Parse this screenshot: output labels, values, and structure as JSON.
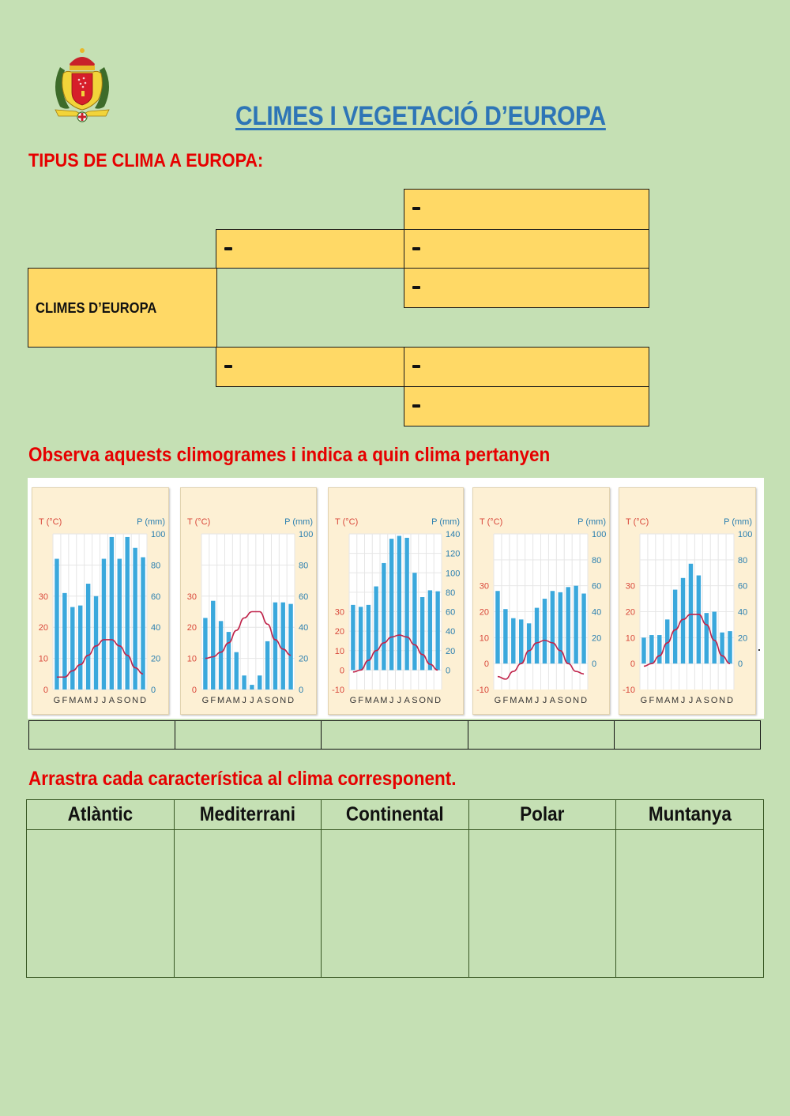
{
  "header": {
    "title": "CLIMES I VEGETACIÓ D’EUROPA",
    "logo": "coat-of-arms-icon"
  },
  "section1": {
    "heading": "TIPUS DE CLIMA A EUROPA:",
    "root_label": "CLIMES D’EUROPA",
    "dash": "-",
    "level1_count": 2,
    "level2_count": 5
  },
  "section2": {
    "heading": "Observa aquests climogrames i indica a quin clima pertanyen",
    "answer_boxes": [
      "",
      "",
      "",
      "",
      ""
    ]
  },
  "section3": {
    "heading": "Arrastra cada característica al clima corresponent.",
    "columns": [
      "Atlàntic",
      "Mediterrani",
      "Continental",
      "Polar",
      "Muntanya"
    ]
  },
  "colors": {
    "background": "#c5e0b4",
    "title_blue": "#2e75b6",
    "heading_red": "#e60000",
    "box_yellow": "#ffd966",
    "chart_bg": "#fdf0d4",
    "bar_blue": "#3aa8dc",
    "temp_line": "#c0234a",
    "t_axis_red": "#d9473a",
    "p_axis_blue": "#2a7fb0"
  },
  "chart_data": [
    {
      "type": "bar",
      "title": "Climograma 1",
      "categories": [
        "G",
        "F",
        "M",
        "A",
        "M",
        "J",
        "J",
        "A",
        "S",
        "O",
        "N",
        "D"
      ],
      "xlabel": "",
      "ylabel_left": "T (°C)",
      "ylabel_right": "P (mm)",
      "left_ticks": [
        0,
        10,
        20,
        30
      ],
      "right_ticks": [
        0,
        20,
        40,
        60,
        80,
        100
      ],
      "ylim_left": [
        0,
        50
      ],
      "ylim_right": [
        0,
        100
      ],
      "series": [
        {
          "name": "P (mm)",
          "type": "bar",
          "axis": "right",
          "values": [
            84,
            62,
            53,
            54,
            68,
            60,
            84,
            98,
            84,
            98,
            91,
            85
          ]
        },
        {
          "name": "T (°C)",
          "type": "line",
          "axis": "left",
          "values": [
            4,
            4,
            6,
            8,
            11,
            14,
            16,
            16,
            14,
            11,
            7,
            5
          ]
        }
      ],
      "grid": true
    },
    {
      "type": "bar",
      "title": "Climograma 2",
      "categories": [
        "G",
        "F",
        "M",
        "A",
        "M",
        "J",
        "J",
        "A",
        "S",
        "O",
        "N",
        "D"
      ],
      "xlabel": "",
      "ylabel_left": "T (°C)",
      "ylabel_right": "P (mm)",
      "left_ticks": [
        0,
        10,
        20,
        30
      ],
      "right_ticks": [
        0,
        20,
        40,
        60,
        80,
        100
      ],
      "ylim_left": [
        0,
        50
      ],
      "ylim_right": [
        0,
        100
      ],
      "series": [
        {
          "name": "P (mm)",
          "type": "bar",
          "axis": "right",
          "values": [
            46,
            57,
            44,
            37,
            24,
            9,
            3,
            9,
            31,
            56,
            56,
            55
          ]
        },
        {
          "name": "T (°C)",
          "type": "line",
          "axis": "left",
          "values": [
            10,
            10.5,
            12,
            15,
            19,
            23,
            25,
            25,
            21,
            16,
            13,
            11
          ]
        }
      ],
      "grid": true
    },
    {
      "type": "bar",
      "title": "Climograma 3",
      "categories": [
        "G",
        "F",
        "M",
        "A",
        "M",
        "J",
        "J",
        "A",
        "S",
        "O",
        "N",
        "D"
      ],
      "xlabel": "",
      "ylabel_left": "T (°C)",
      "ylabel_right": "P (mm)",
      "left_ticks": [
        -10,
        0,
        10,
        20,
        30
      ],
      "right_ticks": [
        0,
        20,
        40,
        60,
        80,
        100,
        120,
        140
      ],
      "ylim_left": [
        -10,
        70
      ],
      "ylim_right": [
        -20,
        140
      ],
      "series": [
        {
          "name": "P (mm)",
          "type": "bar",
          "axis": "right",
          "values": [
            67,
            65,
            67,
            86,
            110,
            135,
            138,
            136,
            100,
            75,
            82,
            81
          ]
        },
        {
          "name": "T (°C)",
          "type": "line",
          "axis": "left",
          "values": [
            -1,
            0,
            5,
            10,
            14,
            17,
            18,
            17,
            13,
            8,
            3,
            0
          ]
        }
      ],
      "grid": true
    },
    {
      "type": "bar",
      "title": "Climograma 4",
      "categories": [
        "G",
        "F",
        "M",
        "A",
        "M",
        "J",
        "J",
        "A",
        "S",
        "O",
        "N",
        "D"
      ],
      "xlabel": "",
      "ylabel_left": "T (°C)",
      "ylabel_right": "P (mm)",
      "left_ticks": [
        -10,
        0,
        10,
        20,
        30
      ],
      "right_ticks": [
        0,
        20,
        40,
        60,
        80,
        100
      ],
      "ylim_left": [
        -10,
        50
      ],
      "ylim_right": [
        -20,
        100
      ],
      "series": [
        {
          "name": "P (mm)",
          "type": "bar",
          "axis": "right",
          "values": [
            56,
            42,
            35,
            34,
            31,
            43,
            50,
            56,
            55,
            59,
            60,
            54
          ]
        },
        {
          "name": "T (°C)",
          "type": "line",
          "axis": "left",
          "values": [
            -5,
            -6,
            -3,
            0,
            5,
            8,
            9,
            8,
            5,
            0,
            -3,
            -4
          ]
        }
      ],
      "grid": true
    },
    {
      "type": "bar",
      "title": "Climograma 5",
      "categories": [
        "G",
        "F",
        "M",
        "A",
        "M",
        "J",
        "J",
        "A",
        "S",
        "O",
        "N",
        "D"
      ],
      "xlabel": "",
      "ylabel_left": "T (°C)",
      "ylabel_right": "P (mm)",
      "left_ticks": [
        -10,
        0,
        10,
        20,
        30
      ],
      "right_ticks": [
        0,
        20,
        40,
        60,
        80,
        100
      ],
      "ylim_left": [
        -10,
        50
      ],
      "ylim_right": [
        -20,
        100
      ],
      "series": [
        {
          "name": "P (mm)",
          "type": "bar",
          "axis": "right",
          "values": [
            20,
            22,
            22,
            34,
            57,
            66,
            77,
            68,
            39,
            40,
            24,
            25
          ]
        },
        {
          "name": "T (°C)",
          "type": "line",
          "axis": "left",
          "values": [
            -1,
            0,
            3,
            8,
            13,
            17,
            19,
            19,
            15,
            9,
            3,
            0
          ]
        }
      ],
      "grid": true
    }
  ]
}
